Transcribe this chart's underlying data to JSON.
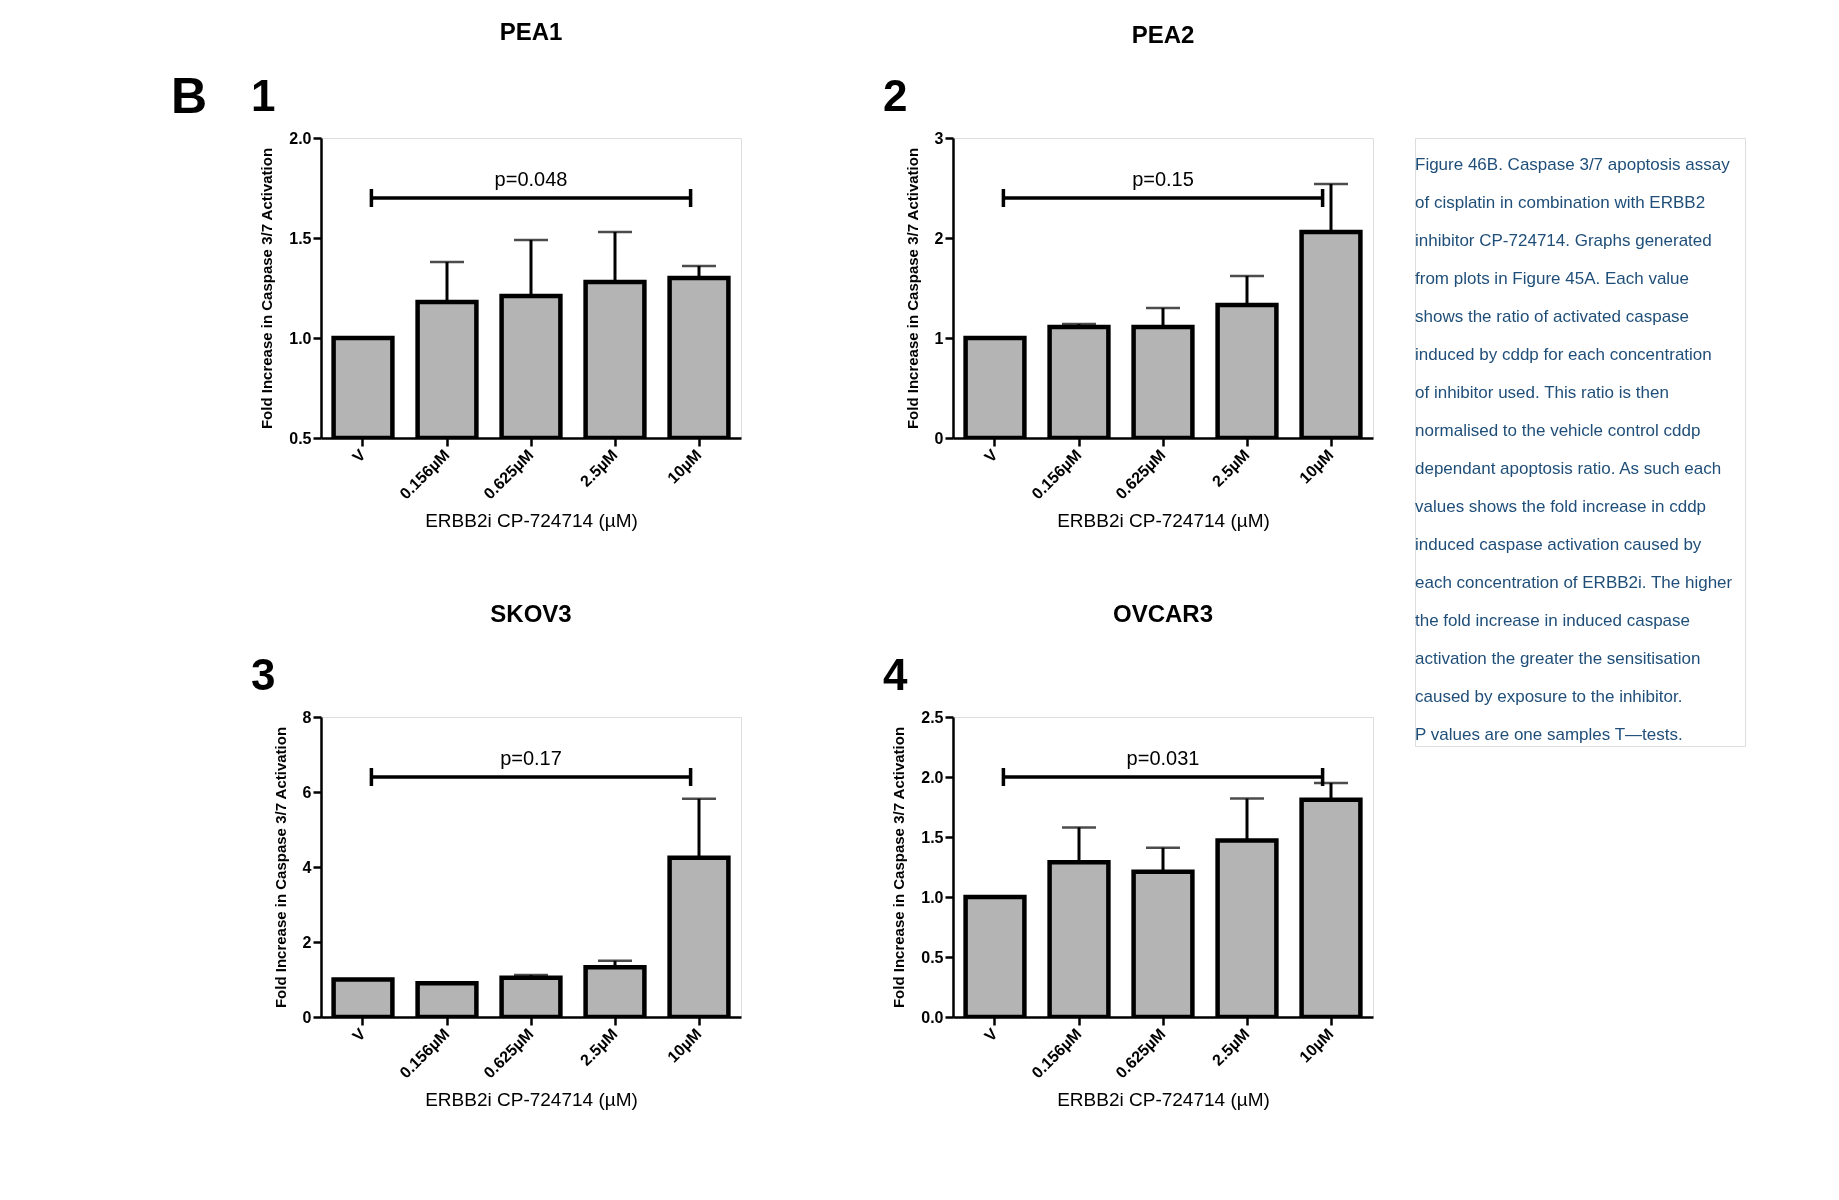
{
  "chart_data": [
    {
      "type": "bar",
      "title": "PEA1",
      "xlabel": "ERBB2i CP-724714 (µM)",
      "ylabel": "Fold Increase in\nCaspase 3/7 Activation",
      "categories": [
        "V",
        "0.156µM",
        "0.625µM",
        "2.5µM",
        "10µM"
      ],
      "values": [
        1.0,
        1.18,
        1.21,
        1.28,
        1.3
      ],
      "errors": [
        null,
        [
          1.18,
          1.38
        ],
        [
          1.21,
          1.49
        ],
        [
          1.28,
          1.53
        ],
        [
          1.3,
          1.36
        ]
      ],
      "color": "#b4b4b4",
      "ylim": [
        0.5,
        2.0
      ],
      "yticks": [
        {
          "value": 0.5,
          "label": "0.5"
        },
        {
          "value": 1,
          "label": "1.0"
        },
        {
          "value": 1.5,
          "label": "1.5"
        },
        {
          "value": 2,
          "label": "2.0"
        }
      ],
      "annotations": [
        "B",
        "1",
        "p=0.048"
      ]
    },
    {
      "type": "bar",
      "title": "PEA2",
      "xlabel": "ERBB2i CP-724714 (µM)",
      "ylabel": "Fold Increase in\nCaspase 3/7 Activation",
      "categories": [
        "V",
        "0.156µM",
        "0.625µM",
        "2.5µM",
        "10µM"
      ],
      "values": [
        1.0,
        1.11,
        1.11,
        1.33,
        2.06
      ],
      "errors": [
        null,
        [
          1.11,
          1.14
        ],
        [
          1.11,
          1.3
        ],
        [
          1.33,
          1.62
        ],
        [
          2.06,
          2.54
        ]
      ],
      "color": "#b4b4b4",
      "ylim": [
        0,
        3
      ],
      "yticks": [
        0,
        1,
        2,
        3
      ],
      "annotations": [
        "2",
        "p=0.15"
      ]
    },
    {
      "type": "bar",
      "title": "SKOV3",
      "xlabel": "ERBB2i CP-724714 (µM)",
      "ylabel": "Fold Increase in\nCaspase 3/7 Activation",
      "categories": [
        "V",
        "0.156µM",
        "0.625µM",
        "2.5µM",
        "10µM"
      ],
      "values": [
        1.0,
        0.9,
        1.05,
        1.33,
        4.25
      ],
      "errors": [
        null,
        null,
        [
          1.05,
          1.12
        ],
        [
          1.33,
          1.5
        ],
        [
          4.25,
          5.82
        ]
      ],
      "color": "#b4b4b4",
      "ylim": [
        0,
        8
      ],
      "yticks": [
        0,
        2,
        4,
        6,
        8
      ],
      "annotations": [
        "3",
        "p=0.17"
      ]
    },
    {
      "type": "bar",
      "title": "OVCAR3",
      "xlabel": "ERBB2i CP-724714 (µM)",
      "ylabel": "Fold Increase in\nCaspase 3/7 Activation",
      "categories": [
        "V",
        "0.156µM",
        "0.625µM",
        "2.5µM",
        "10µM"
      ],
      "values": [
        1.0,
        1.29,
        1.21,
        1.47,
        1.81
      ],
      "errors": [
        null,
        [
          1.29,
          1.58
        ],
        [
          1.21,
          1.41
        ],
        [
          1.47,
          1.82
        ],
        [
          1.81,
          1.95
        ]
      ],
      "color": "#b4b4b4",
      "ylim": [
        0,
        2.5
      ],
      "yticks": [
        {
          "value": 0,
          "label": "0.0"
        },
        {
          "value": 0.5,
          "label": "0.5"
        },
        {
          "value": 1,
          "label": "1.0"
        },
        {
          "value": 1.5,
          "label": "1.5"
        },
        {
          "value": 2,
          "label": "2.0"
        },
        {
          "value": 2.5,
          "label": "2.5"
        }
      ],
      "annotations": [
        "4",
        "p=0.031"
      ]
    },
    {
      "type": "other",
      "annotations": [
        "Figure 46B. Caspase 3/7 apoptosis assay of cisplatin in combination with ERBB2 inhibitor CP-724714. Graphs generated from plots in Figure 45A. Each value shows the ratio of activated caspase induced by cddp for each concentration of inhibitor used. This ratio is then normalised to the vehicle control cddp dependant apoptosis ratio. As such each values shows the fold increase in cddp induced caspase activation caused by each concentration of ERBB2i. The higher the fold increase in induced caspase activation the greater the sensitisation caused by exposure to the inhibitor.",
        "P values are one samples T—tests."
      ]
    }
  ]
}
